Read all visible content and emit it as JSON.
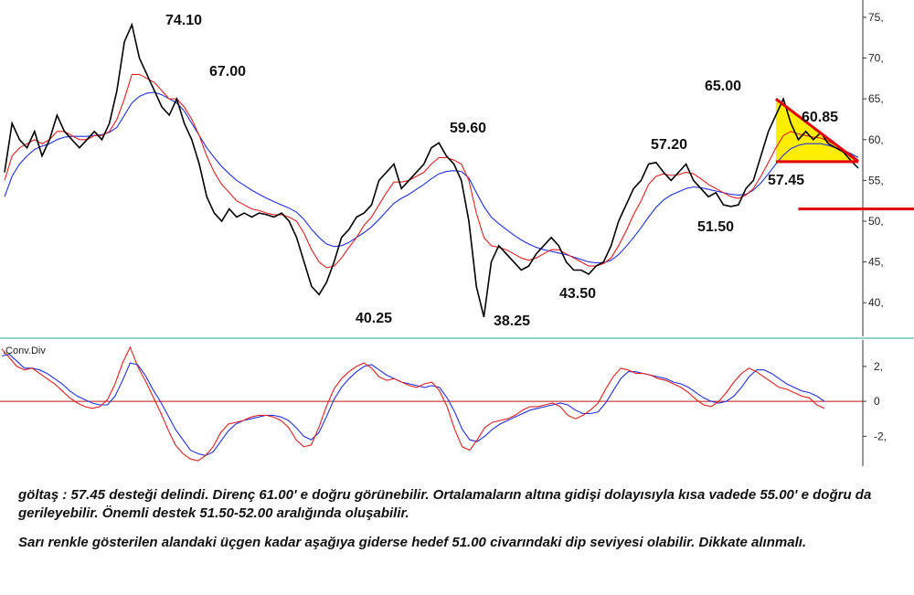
{
  "chart_data": [
    {
      "type": "line",
      "panel": "price",
      "yticks": [
        40,
        45,
        50,
        55,
        60,
        65,
        70,
        75
      ],
      "ytick_labels": [
        "40,",
        "45,",
        "50,",
        "55,",
        "60,",
        "65,",
        "70,",
        "75,"
      ],
      "ylim": [
        37,
        76
      ],
      "series": [
        {
          "role": "close",
          "color": "#000000",
          "values": [
            56,
            62,
            60,
            59,
            61,
            58,
            60,
            63,
            61,
            60,
            59,
            60,
            61,
            60,
            62,
            66,
            72,
            74.1,
            70,
            68,
            66,
            64,
            63,
            65,
            62,
            60,
            57,
            53,
            51,
            50,
            51.5,
            50.5,
            51,
            50.5,
            51,
            50.8,
            50.5,
            51,
            50,
            48,
            45,
            42,
            41,
            42.5,
            45,
            48,
            49,
            50.5,
            51,
            52,
            55,
            56,
            57,
            54,
            55,
            56,
            57,
            59,
            59.6,
            58,
            57,
            55,
            50,
            42,
            38.25,
            45,
            47,
            46,
            45,
            44,
            44.5,
            46,
            47,
            48,
            47,
            45,
            44,
            44,
            43.5,
            44.5,
            45,
            47,
            50,
            52,
            54,
            55,
            57,
            57.2,
            56,
            55,
            56,
            57,
            55,
            54,
            53,
            53.5,
            52,
            51.8,
            52,
            54,
            55,
            58,
            61,
            63,
            65,
            62,
            60,
            61,
            60,
            60.85,
            59.5,
            59,
            58.5,
            57.45,
            56.5
          ]
        },
        {
          "role": "ma-short",
          "color": "#e02020",
          "values": [
            55,
            58,
            59,
            59.5,
            60,
            59.5,
            60,
            61,
            61,
            60.5,
            60,
            60,
            60.5,
            60.5,
            61,
            62.5,
            65,
            68,
            68,
            67.5,
            67,
            66,
            65,
            65,
            64,
            62.5,
            60.5,
            58,
            56,
            54.5,
            53.5,
            52.5,
            52,
            51.5,
            51.3,
            51,
            50.8,
            50.8,
            50.5,
            50,
            48.5,
            46.5,
            45,
            44.3,
            44.5,
            45.5,
            46.8,
            48,
            49.5,
            50.5,
            52,
            53.5,
            54.8,
            54.8,
            55,
            55.5,
            56,
            57,
            57.8,
            57.8,
            57.5,
            57,
            55,
            51,
            48,
            47,
            46.8,
            46.5,
            46,
            45.5,
            45.2,
            45.5,
            46,
            46.5,
            46.5,
            46,
            45.5,
            45,
            44.5,
            44.5,
            44.8,
            45.5,
            47,
            48.8,
            50.8,
            52.5,
            54.5,
            55.5,
            55.8,
            55.6,
            55.7,
            56,
            55.8,
            55.2,
            54.5,
            54,
            53.5,
            53,
            52.8,
            53.2,
            54,
            55.5,
            57.2,
            59,
            60.5,
            61,
            60.7,
            60.5,
            60.3,
            60.2,
            59.8,
            59.3,
            58.8,
            58.2,
            57.5
          ]
        },
        {
          "role": "ma-long",
          "color": "#2030e0",
          "values": [
            53,
            55.5,
            57,
            58,
            58.8,
            59.2,
            59.5,
            60,
            60.3,
            60.4,
            60.4,
            60.4,
            60.5,
            60.6,
            60.9,
            61.5,
            63,
            64.5,
            65.3,
            65.7,
            65.8,
            65.5,
            65,
            64.5,
            63.5,
            62,
            60.5,
            59,
            57.8,
            56.7,
            55.8,
            55,
            54.4,
            53.8,
            53.3,
            52.8,
            52.4,
            52,
            51.6,
            51.1,
            50.2,
            49,
            48,
            47.2,
            46.9,
            47,
            47.4,
            48,
            48.6,
            49.3,
            50.2,
            51.2,
            52.2,
            52.8,
            53.3,
            53.9,
            54.5,
            55.2,
            55.8,
            56.1,
            56.2,
            56.1,
            55.3,
            53.5,
            51.8,
            50.5,
            49.7,
            49,
            48.3,
            47.7,
            47.2,
            46.8,
            46.5,
            46.3,
            46.1,
            45.9,
            45.6,
            45.3,
            45,
            44.9,
            44.9,
            45.2,
            45.9,
            46.9,
            48,
            49.2,
            50.5,
            51.7,
            52.6,
            53.2,
            53.6,
            54,
            54.2,
            54.1,
            53.9,
            53.7,
            53.5,
            53.3,
            53.2,
            53.3,
            53.8,
            54.7,
            55.8,
            57,
            58.1,
            58.9,
            59.3,
            59.5,
            59.5,
            59.5,
            59.3,
            59,
            58.7,
            58.3,
            57.8
          ]
        }
      ],
      "annotations": [
        "74.10",
        "67.00",
        "40.25",
        "59.60",
        "38.25",
        "43.50",
        "57.20",
        "51.50",
        "65.00",
        "60.85",
        "57.45"
      ],
      "lines": [
        {
          "name": "support",
          "from": [
            106,
            51.5
          ],
          "to": [
            999,
            51.5
          ],
          "color": "#e00000"
        },
        {
          "name": "triangle-upper",
          "from": [
            103,
            65.0
          ],
          "to": [
            114,
            57.3
          ],
          "color": "#e00000"
        },
        {
          "name": "triangle-lower",
          "from": [
            103,
            57.3
          ],
          "to": [
            114,
            57.3
          ],
          "color": "#e00000"
        }
      ],
      "triangle_fill": "#ffee00"
    },
    {
      "type": "line",
      "panel": "indicator",
      "title": ".Conv.Div",
      "yticks": [
        2,
        0,
        -2
      ],
      "ytick_labels": [
        "2,",
        "0",
        "-2,"
      ],
      "ylim": [
        -3.5,
        3.2
      ],
      "zero_line_color": "#c01010",
      "series": [
        {
          "role": "signal",
          "color": "#2030e0",
          "values": [
            2.6,
            2.7,
            2.3,
            1.9,
            1.9,
            1.8,
            1.6,
            1.3,
            1.0,
            0.6,
            0.3,
            0.1,
            -0.1,
            -0.2,
            -0.2,
            0.3,
            1.2,
            2.2,
            2.1,
            1.5,
            0.7,
            0.0,
            -0.8,
            -1.6,
            -2.2,
            -2.8,
            -3.0,
            -3.1,
            -2.9,
            -2.3,
            -1.7,
            -1.3,
            -1.1,
            -1.0,
            -0.9,
            -0.8,
            -0.8,
            -0.9,
            -1.1,
            -1.5,
            -2.0,
            -2.2,
            -1.8,
            -0.9,
            0.1,
            0.8,
            1.3,
            1.7,
            2.0,
            2.1,
            1.8,
            1.5,
            1.3,
            1.1,
            1.0,
            0.9,
            0.8,
            0.9,
            0.8,
            0.2,
            -0.6,
            -1.6,
            -2.2,
            -2.3,
            -2.0,
            -1.6,
            -1.3,
            -1.1,
            -0.9,
            -0.7,
            -0.5,
            -0.4,
            -0.3,
            -0.2,
            -0.1,
            -0.2,
            -0.5,
            -0.7,
            -0.7,
            -0.6,
            -0.1,
            0.6,
            1.3,
            1.7,
            1.7,
            1.6,
            1.5,
            1.4,
            1.3,
            1.1,
            1.0,
            0.8,
            0.5,
            0.2,
            0.0,
            -0.1,
            0.0,
            0.3,
            0.8,
            1.4,
            1.8,
            1.8,
            1.6,
            1.3,
            1.0,
            0.8,
            0.6,
            0.5,
            0.3,
            0.0
          ]
        },
        {
          "role": "macd",
          "color": "#e02020",
          "values": [
            3.0,
            2.5,
            2.0,
            1.8,
            1.9,
            1.6,
            1.3,
            1.0,
            0.6,
            0.2,
            -0.1,
            -0.3,
            -0.4,
            -0.3,
            0.1,
            1.0,
            2.2,
            3.1,
            2.0,
            1.2,
            0.3,
            -0.6,
            -1.6,
            -2.5,
            -3.0,
            -3.3,
            -3.4,
            -3.1,
            -2.6,
            -1.8,
            -1.3,
            -1.2,
            -1.1,
            -0.9,
            -0.8,
            -0.8,
            -0.9,
            -1.1,
            -1.5,
            -2.2,
            -2.6,
            -2.5,
            -1.5,
            -0.3,
            0.7,
            1.3,
            1.7,
            2.0,
            2.2,
            1.9,
            1.4,
            1.2,
            1.3,
            1.1,
            0.9,
            0.8,
            1.0,
            1.1,
            0.6,
            -0.3,
            -1.6,
            -2.6,
            -2.8,
            -2.2,
            -1.5,
            -1.2,
            -1.1,
            -1.0,
            -0.8,
            -0.5,
            -0.3,
            -0.3,
            -0.2,
            -0.1,
            -0.3,
            -0.8,
            -1.0,
            -0.8,
            -0.5,
            -0.1,
            0.7,
            1.4,
            1.9,
            1.8,
            1.6,
            1.6,
            1.5,
            1.3,
            1.2,
            1.0,
            0.8,
            0.5,
            0.1,
            -0.2,
            -0.3,
            0.0,
            0.5,
            1.1,
            1.6,
            1.9,
            1.7,
            1.4,
            1.1,
            0.8,
            0.7,
            0.5,
            0.3,
            0.2,
            -0.2,
            -0.4
          ]
        }
      ]
    }
  ],
  "commentary": {
    "line1": "göltaş : 57.45 desteği delindi. Direnç 61.00' e doğru görünebilir. Ortalamaların altına gidişi dolayısıyla kısa vadede 55.00' e doğru da gerileyebilir. Önemli destek 51.50-52.00 aralığında oluşabilir.",
    "line2": "Sarı renkle gösterilen alandaki üçgen kadar aşağıya giderse hedef 51.00 civarındaki dip seviyesi olabilir. Dikkate alınmalı."
  }
}
